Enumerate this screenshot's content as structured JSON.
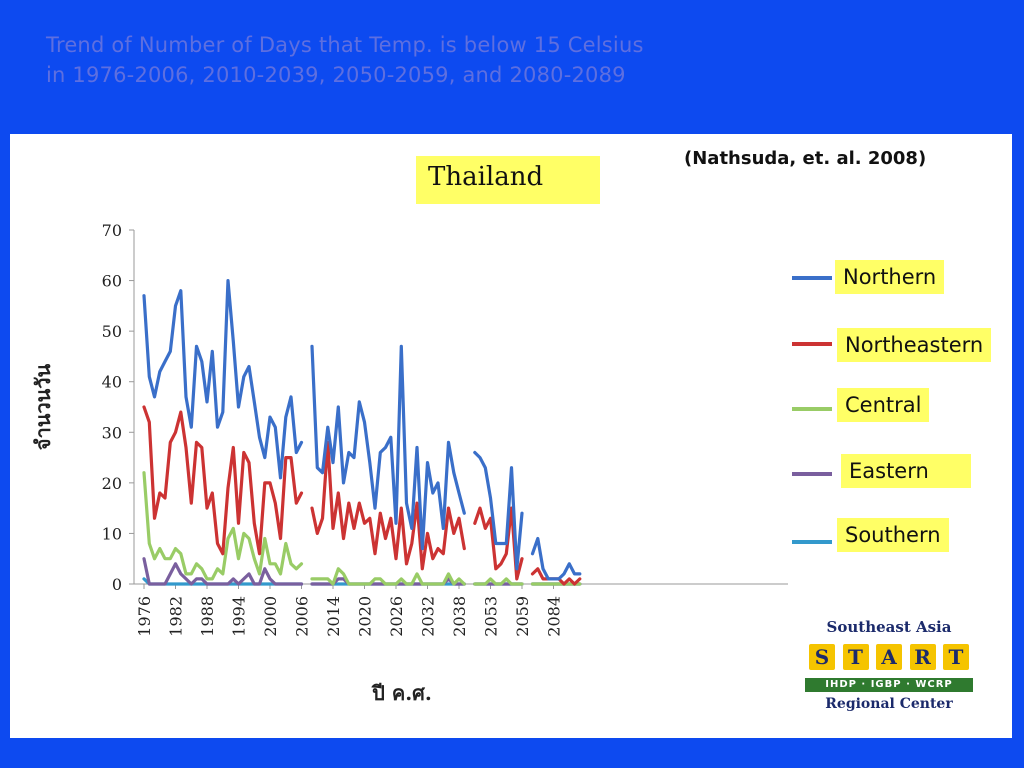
{
  "slide": {
    "title_line1": "Trend of Number of Days that Temp. is below 15 Celsius",
    "title_line2": "in 1976-2006, 2010-2039, 2050-2059, and 2080-2089"
  },
  "country_label": "Thailand",
  "citation": "(Nathsuda, et. al. 2008)",
  "logo": {
    "top": "Southeast Asia",
    "letters": [
      "S",
      "T",
      "A",
      "R",
      "T"
    ],
    "band": "IHDP · IGBP · WCRP",
    "bottom": "Regional Center"
  },
  "chart_data": {
    "type": "line",
    "ylabel": "จำนวนวัน",
    "xlabel": "ปี ค.ศ.",
    "ylim": [
      0,
      70
    ],
    "yticks": [
      0,
      10,
      20,
      30,
      40,
      50,
      60,
      70
    ],
    "xtick_labels": [
      "1976",
      "1982",
      "1988",
      "1994",
      "2000",
      "2006",
      "2014",
      "2020",
      "2026",
      "2032",
      "2038",
      "2053",
      "2059",
      "2084"
    ],
    "legend_position": "right",
    "periods": [
      {
        "name": "1976-2006",
        "start": 1976,
        "end": 2006
      },
      {
        "name": "2010-2039",
        "start": 2010,
        "end": 2039
      },
      {
        "name": "2050-2059",
        "start": 2050,
        "end": 2059
      },
      {
        "name": "2080-2089",
        "start": 2080,
        "end": 2089
      }
    ],
    "series": [
      {
        "name": "Northern",
        "color": "#3a6fc9",
        "segments": [
          [
            57,
            41,
            37,
            42,
            44,
            46,
            55,
            58,
            37,
            31,
            47,
            44,
            36,
            46,
            31,
            34,
            60,
            48,
            35,
            41,
            43,
            36,
            29,
            25,
            33,
            31,
            21,
            33,
            37,
            26,
            28
          ],
          [
            47,
            23,
            22,
            31,
            24,
            35,
            20,
            26,
            25,
            36,
            32,
            24,
            15,
            26,
            27,
            29,
            12,
            47,
            16,
            11,
            27,
            7,
            24,
            18,
            20,
            11,
            28,
            22,
            18,
            14
          ],
          [
            26,
            25,
            23,
            17,
            8,
            8,
            8,
            23,
            3,
            14
          ],
          [
            6,
            9,
            3,
            1,
            1,
            1,
            2,
            4,
            2,
            2
          ]
        ]
      },
      {
        "name": "Northeastern",
        "color": "#cc3333",
        "segments": [
          [
            35,
            32,
            13,
            18,
            17,
            28,
            30,
            34,
            27,
            16,
            28,
            27,
            15,
            18,
            8,
            6,
            19,
            27,
            12,
            26,
            24,
            12,
            6,
            20,
            20,
            16,
            9,
            25,
            25,
            16,
            18
          ],
          [
            15,
            10,
            13,
            28,
            11,
            18,
            9,
            16,
            11,
            16,
            12,
            13,
            6,
            14,
            9,
            13,
            5,
            15,
            4,
            8,
            16,
            3,
            10,
            5,
            7,
            6,
            15,
            10,
            13,
            7
          ],
          [
            12,
            15,
            11,
            13,
            3,
            4,
            6,
            15,
            1,
            5
          ],
          [
            2,
            3,
            1,
            1,
            1,
            1,
            0,
            1,
            0,
            1
          ]
        ]
      },
      {
        "name": "Central",
        "color": "#99cc66",
        "segments": [
          [
            22,
            8,
            5,
            7,
            5,
            5,
            7,
            6,
            2,
            2,
            4,
            3,
            1,
            1,
            3,
            2,
            9,
            11,
            5,
            10,
            9,
            5,
            2,
            9,
            4,
            4,
            2,
            8,
            4,
            3,
            4
          ],
          [
            1,
            1,
            1,
            1,
            0,
            3,
            2,
            0,
            0,
            0,
            0,
            0,
            1,
            1,
            0,
            0,
            0,
            1,
            0,
            0,
            2,
            0,
            0,
            0,
            0,
            0,
            2,
            0,
            1,
            0
          ],
          [
            0,
            0,
            0,
            1,
            0,
            0,
            1,
            0,
            0,
            0
          ],
          [
            0,
            0,
            0,
            0,
            0,
            0,
            0,
            0,
            0,
            0
          ]
        ]
      },
      {
        "name": "Eastern",
        "color": "#7a5f9e",
        "segments": [
          [
            5,
            0,
            0,
            0,
            0,
            2,
            4,
            2,
            1,
            0,
            1,
            1,
            0,
            0,
            0,
            0,
            0,
            1,
            0,
            1,
            2,
            0,
            0,
            3,
            1,
            0,
            0,
            0,
            0,
            0,
            0
          ],
          [
            0,
            0,
            0,
            0,
            0,
            1,
            1,
            0,
            0,
            0,
            0,
            0,
            0,
            0,
            0,
            0,
            0,
            0,
            0,
            0,
            0,
            0,
            0,
            0,
            0,
            0,
            1,
            0,
            0,
            0
          ],
          [
            0,
            0,
            0,
            0,
            0,
            0,
            0,
            0,
            0,
            0
          ],
          [
            0,
            0,
            0,
            0,
            0,
            0,
            0,
            0,
            0,
            0
          ]
        ]
      },
      {
        "name": "Southern",
        "color": "#3399cc",
        "segments": [
          [
            1,
            0,
            0,
            0,
            0,
            0,
            0,
            0,
            0,
            0,
            0,
            0,
            0,
            0,
            0,
            0,
            0,
            0,
            0,
            0,
            0,
            0,
            0,
            0,
            0,
            0,
            0,
            0,
            0,
            0,
            0
          ],
          [
            0,
            0,
            0,
            0,
            0,
            0,
            0,
            0,
            0,
            0,
            0,
            0,
            0,
            0,
            0,
            0,
            0,
            0,
            0,
            0,
            0,
            0,
            0,
            0,
            0,
            0,
            0,
            0,
            0,
            0
          ],
          [
            0,
            0,
            0,
            0,
            0,
            0,
            0,
            0,
            0,
            0
          ],
          [
            0,
            0,
            0,
            0,
            0,
            0,
            0,
            0,
            0,
            0
          ]
        ]
      }
    ]
  }
}
